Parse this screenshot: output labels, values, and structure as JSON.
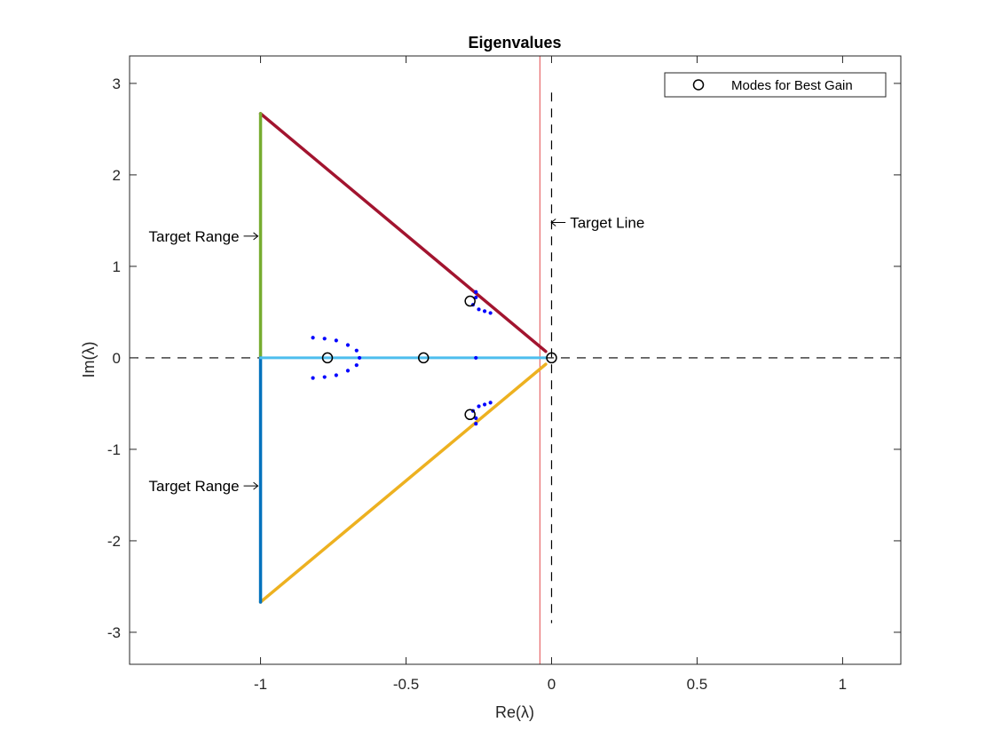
{
  "chart_data": {
    "type": "scatter",
    "title": "Eigenvalues",
    "xlabel": "Re(λ)",
    "ylabel": "Im(λ)",
    "xlim": [
      -1.45,
      1.2
    ],
    "ylim": [
      -3.35,
      3.3
    ],
    "xticks": [
      -1,
      -0.5,
      0,
      0.5,
      1
    ],
    "xtick_labels": [
      "-1",
      "-0.5",
      "0",
      "0.5",
      "1"
    ],
    "yticks": [
      -3,
      -2,
      -1,
      0,
      1,
      2,
      3
    ],
    "ytick_labels": [
      "-3",
      "-2",
      "-1",
      "0",
      "1",
      "2",
      "3"
    ],
    "grid": false,
    "legend": {
      "position": "top-right",
      "entries": [
        "Modes for Best Gain"
      ]
    },
    "colors": {
      "axes": "#262626",
      "reference": "#000000",
      "target_line": "#e8696b",
      "upper_edge": "#a2142f",
      "lower_edge": "#edb120",
      "left_upper": "#77ac30",
      "left_lower": "#0072bd",
      "real_axis_band": "#4dbeee",
      "sweep_points": "#0000ff",
      "best_modes": "#000000"
    },
    "reference_lines": {
      "horizontal_y": 0,
      "vertical_x": 0
    },
    "target_line_x": -0.04,
    "regions": [
      {
        "name": "upper_edge",
        "x": [
          -1,
          -0.02
        ],
        "y": [
          2.67,
          0.07
        ]
      },
      {
        "name": "lower_edge",
        "x": [
          -1,
          -0.02
        ],
        "y": [
          -2.67,
          -0.07
        ]
      },
      {
        "name": "left_upper",
        "x": [
          -1,
          -1
        ],
        "y": [
          0,
          2.67
        ]
      },
      {
        "name": "left_lower",
        "x": [
          -1,
          -1
        ],
        "y": [
          0,
          -2.67
        ]
      },
      {
        "name": "real_axis_band",
        "x": [
          -1,
          -0.02
        ],
        "y": [
          0,
          0
        ]
      }
    ],
    "best_modes": {
      "x": [
        -0.77,
        -0.44,
        -0.28,
        -0.28,
        0.0
      ],
      "y": [
        0.0,
        0.0,
        0.62,
        -0.62,
        0.0
      ]
    },
    "sweep_points": {
      "x": [
        -0.82,
        -0.78,
        -0.74,
        -0.7,
        -0.67,
        -0.82,
        -0.78,
        -0.74,
        -0.7,
        -0.67,
        -0.66,
        -0.26,
        -0.27,
        -0.25,
        -0.23,
        -0.21,
        -0.26,
        -0.27,
        -0.25,
        -0.23,
        -0.21,
        -0.26,
        -0.26,
        -0.26
      ],
      "y": [
        0.22,
        0.21,
        0.19,
        0.14,
        0.08,
        -0.22,
        -0.21,
        -0.19,
        -0.14,
        -0.08,
        0.0,
        0.72,
        0.58,
        0.53,
        0.51,
        0.49,
        -0.72,
        -0.58,
        -0.53,
        -0.51,
        -0.49,
        0.66,
        -0.66,
        0.0
      ]
    },
    "annotations": [
      {
        "text": "Target Range",
        "x": -1.0,
        "y": 1.33,
        "side": "left"
      },
      {
        "text": "Target Range",
        "x": -1.0,
        "y": -1.4,
        "side": "left"
      },
      {
        "text": "Target Line",
        "x": -0.01,
        "y": 1.48,
        "side": "right"
      }
    ]
  }
}
